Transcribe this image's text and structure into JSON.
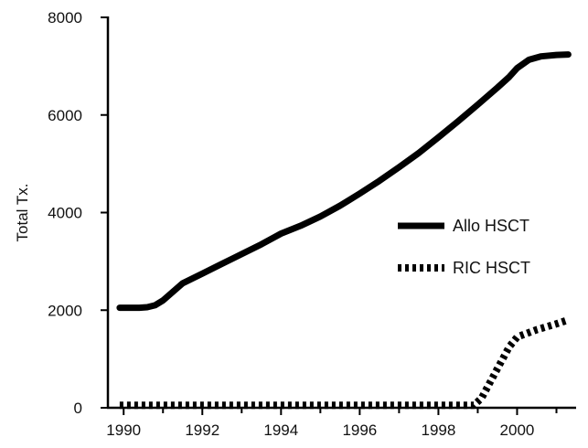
{
  "chart_data": {
    "type": "line",
    "title": "",
    "xlabel": "",
    "ylabel": "Total Tx.",
    "xlim": [
      1989.6,
      2001.5
    ],
    "ylim": [
      0,
      8000
    ],
    "x_ticks": [
      1990,
      1992,
      1994,
      1996,
      1998,
      2000
    ],
    "y_ticks": [
      0,
      2000,
      4000,
      6000,
      8000
    ],
    "x_tick_labels": [
      "1990",
      "1992",
      "1994",
      "1996",
      "1998",
      "2000"
    ],
    "y_tick_labels": [
      "0",
      "2000",
      "4000",
      "6000",
      "8000"
    ],
    "grid": false,
    "legend_position": "center-right",
    "series": [
      {
        "name": "Allo HSCT",
        "style": "solid",
        "color": "#000000",
        "x": [
          1989.9,
          1990.4,
          1990.6,
          1990.8,
          1991.0,
          1991.5,
          1992.0,
          1992.5,
          1993.0,
          1993.5,
          1994.0,
          1994.5,
          1995.0,
          1995.5,
          1996.0,
          1996.5,
          1997.0,
          1997.5,
          1998.0,
          1998.5,
          1999.0,
          1999.5,
          1999.8,
          2000.0,
          2000.3,
          2000.6,
          2001.0,
          2001.3
        ],
        "y": [
          2050,
          2050,
          2060,
          2100,
          2200,
          2550,
          2750,
          2950,
          3150,
          3350,
          3570,
          3730,
          3920,
          4140,
          4390,
          4650,
          4930,
          5220,
          5540,
          5870,
          6210,
          6560,
          6780,
          6960,
          7130,
          7200,
          7230,
          7240
        ]
      },
      {
        "name": "RIC HSCT",
        "style": "dotted",
        "color": "#000000",
        "x": [
          1989.9,
          1990.5,
          1991.0,
          1992.0,
          1993.0,
          1994.0,
          1995.0,
          1996.0,
          1997.0,
          1998.0,
          1998.9,
          1999.1,
          1999.5,
          1999.8,
          2000.0,
          2000.5,
          2001.0,
          2001.3
        ],
        "y": [
          50,
          50,
          50,
          50,
          50,
          50,
          50,
          50,
          50,
          50,
          50,
          200,
          800,
          1250,
          1450,
          1600,
          1720,
          1800
        ]
      }
    ]
  }
}
